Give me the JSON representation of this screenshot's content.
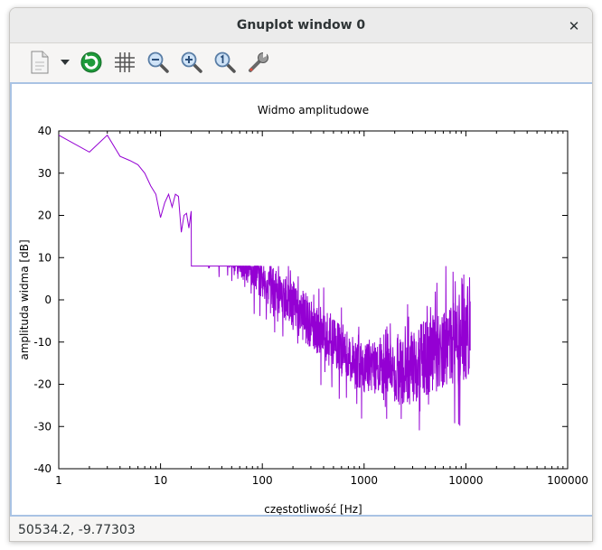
{
  "window": {
    "title": "Gnuplot window 0"
  },
  "toolbar": {
    "items": [
      {
        "name": "copy-icon"
      },
      {
        "name": "dropdown-arrow-icon"
      },
      {
        "name": "replot-icon"
      },
      {
        "name": "grid-icon"
      },
      {
        "name": "zoom-out-icon"
      },
      {
        "name": "zoom-in-icon"
      },
      {
        "name": "zoom-reset-icon"
      },
      {
        "name": "settings-wrench-icon"
      }
    ]
  },
  "status": {
    "coords": "50534.2, -9.77303"
  },
  "colors": {
    "series": "#9400d3",
    "frame": "#a9c3e4"
  },
  "chart_data": {
    "type": "line",
    "title": "Widmo amplitudowe",
    "xlabel": "częstotliwość [Hz]",
    "ylabel": "amplituda widma [dB]",
    "xscale": "log",
    "xlim": [
      1,
      100000
    ],
    "ylim": [
      -40,
      40
    ],
    "xticks": [
      "1",
      "10",
      "100",
      "1000",
      "10000",
      "100000"
    ],
    "yticks": [
      "-40",
      "-30",
      "-20",
      "-10",
      "0",
      "10",
      "20",
      "30",
      "40"
    ],
    "grid": false,
    "legend": "none",
    "series": [
      {
        "x": [
          1,
          2,
          3,
          4,
          5,
          6,
          7,
          8,
          9,
          10,
          11,
          12,
          13,
          14,
          15,
          16,
          17,
          18,
          19,
          20
        ],
        "y": [
          39,
          35,
          39,
          34,
          33,
          32,
          30,
          27,
          25,
          19.5,
          23,
          25,
          22,
          25,
          24.5,
          16,
          20,
          20.5,
          17,
          21
        ]
      }
    ]
  }
}
